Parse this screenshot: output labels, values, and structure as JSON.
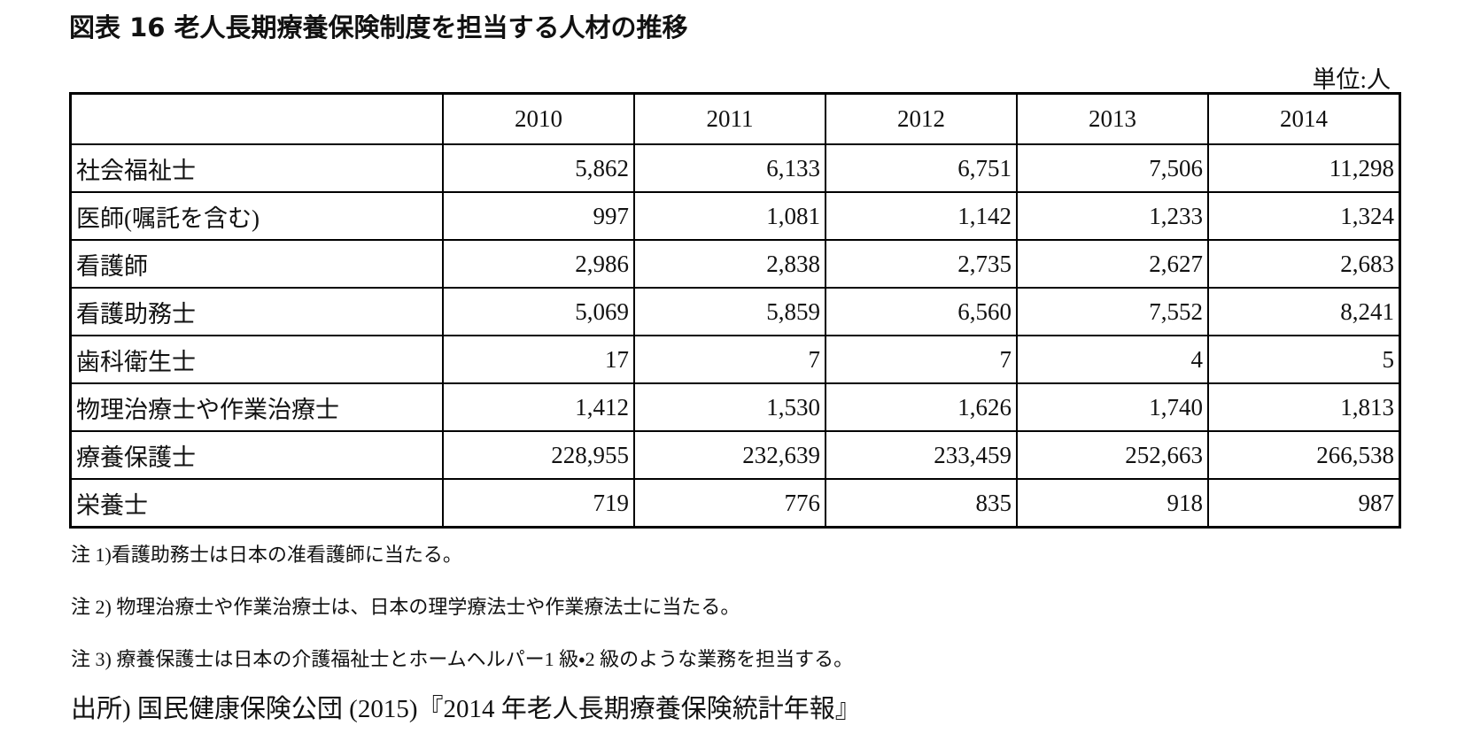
{
  "title": "図表 16 老人長期療養保険制度を担当する人材の推移",
  "unit": "単位:人",
  "table": {
    "header": [
      "",
      "2010",
      "2011",
      "2012",
      "2013",
      "2014"
    ],
    "rows": [
      [
        "社会福祉士",
        "5,862",
        "6,133",
        "6,751",
        "7,506",
        "11,298"
      ],
      [
        "医師(嘱託を含む)",
        "997",
        "1,081",
        "1,142",
        "1,233",
        "1,324"
      ],
      [
        "看護師",
        "2,986",
        "2,838",
        "2,735",
        "2,627",
        "2,683"
      ],
      [
        "看護助務士",
        "5,069",
        "5,859",
        "6,560",
        "7,552",
        "8,241"
      ],
      [
        "歯科衛生士",
        "17",
        "7",
        "7",
        "4",
        "5"
      ],
      [
        "物理治療士や作業治療士",
        "1,412",
        "1,530",
        "1,626",
        "1,740",
        "1,813"
      ],
      [
        "療養保護士",
        "228,955",
        "232,639",
        "233,459",
        "252,663",
        "266,538"
      ],
      [
        "栄養士",
        "719",
        "776",
        "835",
        "918",
        "987"
      ]
    ]
  },
  "notes": [
    "注 1)看護助務士は日本の准看護師に当たる。",
    "注 2) 物理治療士や作業治療士は、日本の理学療法士や作業療法士に当たる。",
    "注 3) 療養保護士は日本の介護福祉士とホームヘルパー1 級・2 級のような業務を担当する。"
  ],
  "source": "出所) 国民健康保険公団 (2015)『2014 年老人長期療養保険統計年報』"
}
